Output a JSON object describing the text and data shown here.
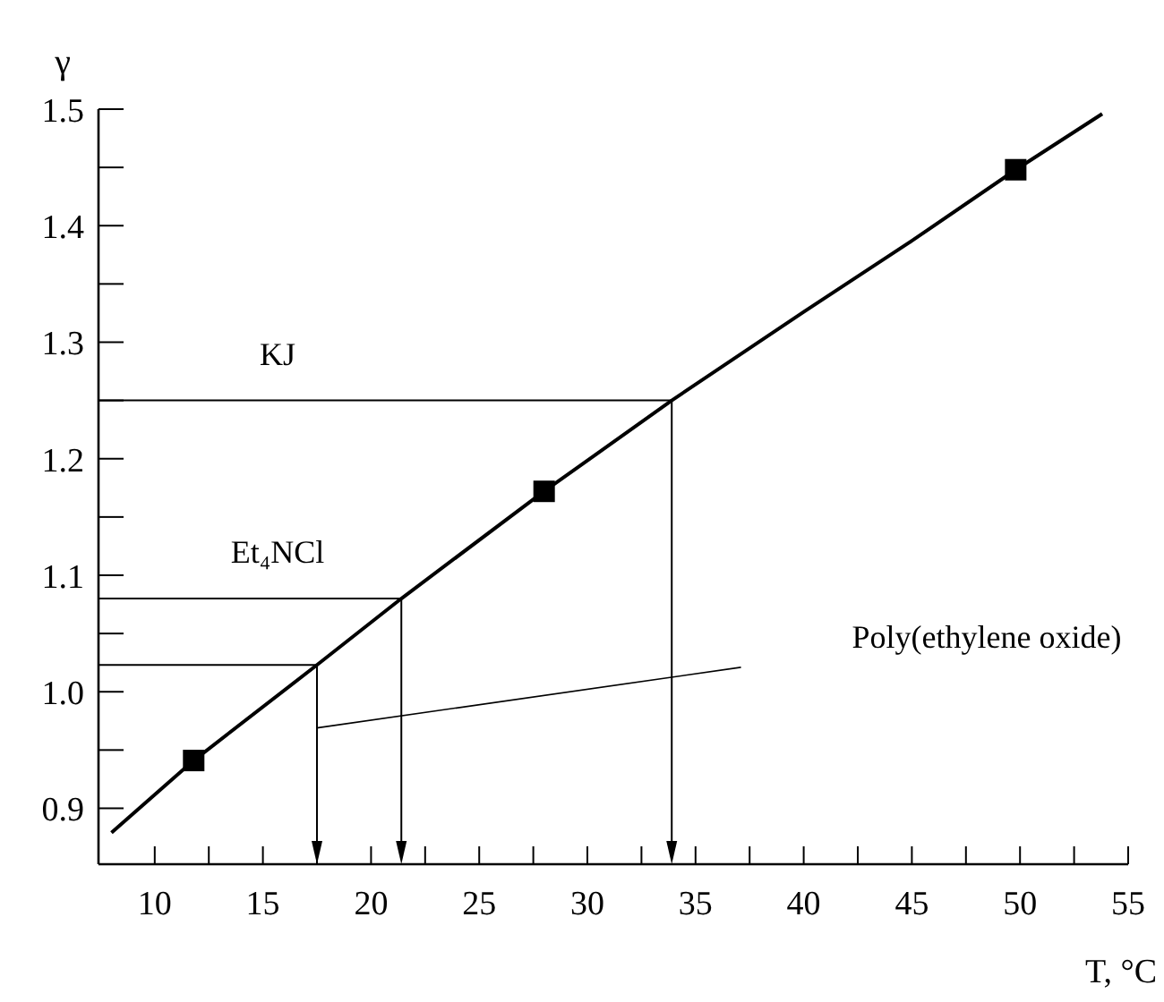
{
  "chart_data": {
    "type": "line",
    "xlabel": "T, °C",
    "ylabel": "γ",
    "xlim": [
      7.4,
      55
    ],
    "ylim": [
      0.852,
      1.5
    ],
    "xticks": [
      10,
      {
        "value": 12.5,
        "label": null
      },
      15,
      {
        "value": 17.5,
        "label": null
      },
      20,
      {
        "value": 22.5,
        "label": null
      },
      25,
      {
        "value": 27.5,
        "label": null
      },
      30,
      {
        "value": 32.5,
        "label": null
      },
      35,
      {
        "value": 37.5,
        "label": null
      },
      40,
      {
        "value": 42.5,
        "label": null
      },
      45,
      {
        "value": 47.5,
        "label": null
      },
      50,
      {
        "value": 52.5,
        "label": null
      },
      55
    ],
    "yticks": [
      0.9,
      {
        "value": 0.95,
        "label": null
      },
      {
        "value": 1,
        "label": "1.0"
      },
      {
        "value": 1.05,
        "label": null
      },
      1.1,
      {
        "value": 1.15,
        "label": null
      },
      1.2,
      {
        "value": 1.25,
        "label": null
      },
      1.3,
      {
        "value": 1.35,
        "label": null
      },
      1.4,
      {
        "value": 1.45,
        "label": null
      },
      1.5
    ],
    "grid": false,
    "series": [
      {
        "color": "#000000",
        "marker": "none",
        "x": [
          8.0,
          11.8,
          17.5,
          21.4,
          28.0,
          33.9,
          40,
          45,
          49.8,
          53.8
        ],
        "values": [
          0.879,
          0.941,
          1.023,
          1.08,
          1.172,
          1.25,
          1.326,
          1.387,
          1.448,
          1.496
        ]
      },
      {
        "type": "scatter",
        "color": "#000000",
        "marker": "square",
        "x": [
          11.8,
          28.0,
          49.8
        ],
        "values": [
          0.941,
          1.172,
          1.448
        ]
      },
      {
        "type": "line",
        "color": "#000000",
        "marker": "none",
        "x": [
          17.5,
          37.1
        ],
        "values": [
          0.969,
          1.021
        ]
      }
    ],
    "ref_lines": [
      {
        "axis": "y",
        "value": 1.25,
        "label": "KJ"
      },
      {
        "axis": "x",
        "value": 33.9
      },
      {
        "axis": "y",
        "value": 1.08,
        "label": "Et₄NCl"
      },
      {
        "axis": "x",
        "value": 21.4
      },
      {
        "axis": "y",
        "value": 1.023
      },
      {
        "axis": "x",
        "value": 17.5
      }
    ],
    "annotations": [
      "Poly(ethylene oxide)"
    ]
  }
}
